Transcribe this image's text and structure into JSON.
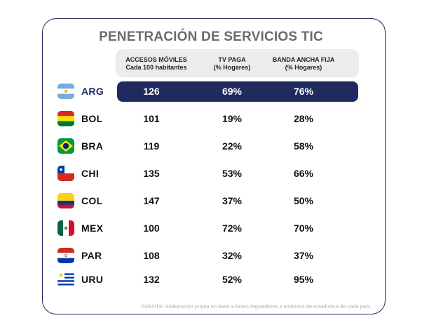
{
  "chart_data": {
    "type": "table",
    "title": "PENETRACIÓN DE SERVICIOS TIC",
    "columns": [
      {
        "title": "ACCESOS MÓVILES",
        "subtitle": "Cada 100 habitantes"
      },
      {
        "title": "TV PAGA",
        "subtitle": "(% Hogares)"
      },
      {
        "title": "BANDA ANCHA FIJA",
        "subtitle": "(% Hogares)"
      }
    ],
    "rows": [
      {
        "code": "ARG",
        "flag": "argentina-flag-icon",
        "values": [
          "126",
          "69%",
          "76%"
        ],
        "highlighted": true
      },
      {
        "code": "BOL",
        "flag": "bolivia-flag-icon",
        "values": [
          "101",
          "19%",
          "28%"
        ]
      },
      {
        "code": "BRA",
        "flag": "brazil-flag-icon",
        "values": [
          "119",
          "22%",
          "58%"
        ]
      },
      {
        "code": "CHI",
        "flag": "chile-flag-icon",
        "values": [
          "135",
          "53%",
          "66%"
        ]
      },
      {
        "code": "COL",
        "flag": "colombia-flag-icon",
        "values": [
          "147",
          "37%",
          "50%"
        ]
      },
      {
        "code": "MEX",
        "flag": "mexico-flag-icon",
        "values": [
          "100",
          "72%",
          "70%"
        ]
      },
      {
        "code": "PAR",
        "flag": "paraguay-flag-icon",
        "values": [
          "108",
          "32%",
          "37%"
        ]
      },
      {
        "code": "URU",
        "flag": "uruguay-flag-icon",
        "values": [
          "132",
          "52%",
          "95%"
        ]
      }
    ],
    "source": "FUENTE: Elaboración propia en base a Entes reguladores e institutos de estadística de cada país."
  },
  "colors": {
    "accent": "#1f2a5e",
    "header_band": "#ececec",
    "title": "#6b6b6b",
    "source": "#b0b0b0"
  }
}
